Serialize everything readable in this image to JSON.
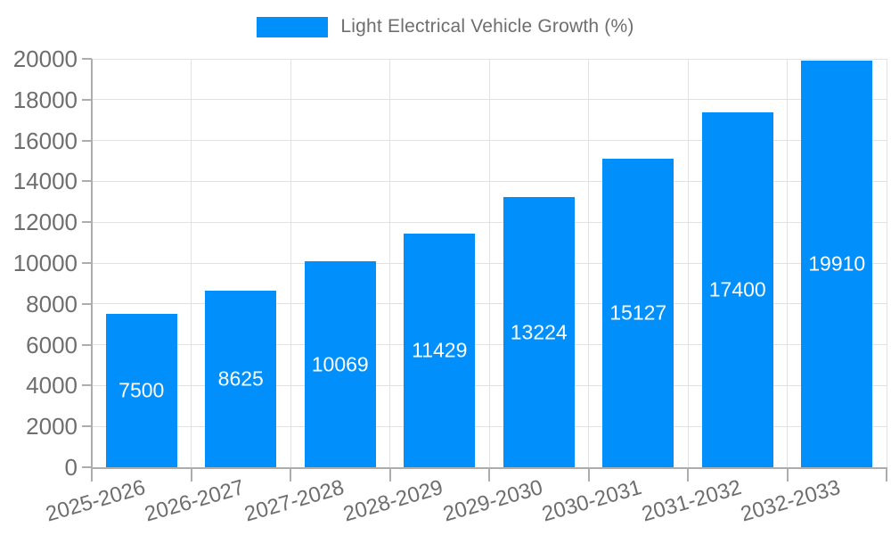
{
  "chart_data": {
    "type": "bar",
    "legend": "Light Electrical Vehicle Growth (%)",
    "legend_position": "top-center",
    "categories": [
      "2025-2026",
      "2026-2027",
      "2027-2028",
      "2028-2029",
      "2029-2030",
      "2030-2031",
      "2031-2032",
      "2032-2033"
    ],
    "values": [
      7500,
      8625,
      10069,
      11429,
      13224,
      15127,
      17400,
      19910
    ],
    "xlabel": "",
    "ylabel": "",
    "ylim": [
      0,
      20000
    ],
    "ytick_step": 2000,
    "ytick_labels": [
      "0",
      "2000",
      "4000",
      "6000",
      "8000",
      "10000",
      "12000",
      "14000",
      "16000",
      "18000",
      "20000"
    ],
    "grid": true,
    "bar_label_position": "middle",
    "colors": {
      "bar": "#008FFB",
      "bar_label": "#FFFFFF",
      "axis_text": "#6E6E6E",
      "grid_line": "#E2E2E2",
      "axis_line": "#ADADAD",
      "tick_line": "#ADADAD"
    }
  }
}
